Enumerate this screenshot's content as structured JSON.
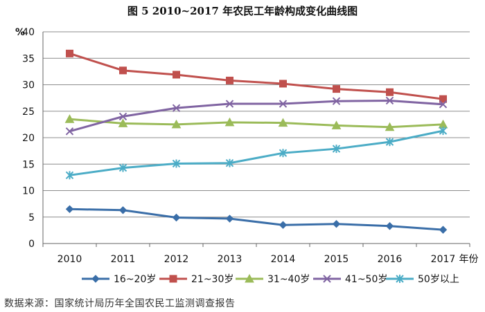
{
  "title": "图 5   2010~2017 年农民工年龄构成变化曲线图",
  "source": "数据来源：国家统计局历年全国农民工监测调查报告",
  "chart_data": {
    "type": "line",
    "title": "图 5   2010~2017 年农民工年龄构成变化曲线图",
    "xlabel": "年份",
    "ylabel": "%",
    "ylim": [
      0,
      40
    ],
    "yticks": [
      0,
      5,
      10,
      15,
      20,
      25,
      30,
      35,
      40
    ],
    "categories": [
      "2010",
      "2011",
      "2012",
      "2013",
      "2014",
      "2015",
      "2016",
      "2017"
    ],
    "grid": "horizontal",
    "legend_position": "bottom",
    "series": [
      {
        "name": "16~20岁",
        "color": "#3a6ea8",
        "marker": "diamond",
        "values": [
          6.5,
          6.3,
          4.9,
          4.7,
          3.5,
          3.7,
          3.3,
          2.6
        ]
      },
      {
        "name": "21~30岁",
        "color": "#c0504d",
        "marker": "square",
        "values": [
          35.9,
          32.7,
          31.9,
          30.8,
          30.2,
          29.2,
          28.6,
          27.3
        ]
      },
      {
        "name": "31~40岁",
        "color": "#9bbb59",
        "marker": "triangle",
        "values": [
          23.5,
          22.7,
          22.5,
          22.9,
          22.8,
          22.3,
          22.0,
          22.5
        ]
      },
      {
        "name": "41~50岁",
        "color": "#8064a2",
        "marker": "x",
        "values": [
          21.2,
          24.0,
          25.6,
          26.4,
          26.4,
          26.9,
          27.0,
          26.3
        ]
      },
      {
        "name": "50岁以上",
        "color": "#4bacc6",
        "marker": "star",
        "values": [
          12.9,
          14.3,
          15.1,
          15.2,
          17.1,
          17.9,
          19.2,
          21.3
        ]
      }
    ]
  }
}
